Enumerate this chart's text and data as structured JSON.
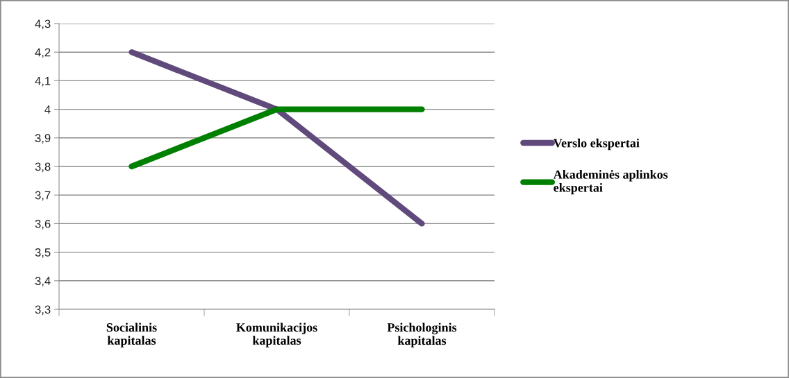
{
  "chart_data": {
    "type": "line",
    "categories": [
      "Socialinis kapitalas",
      "Komunikacijos kapitalas",
      "Psichologinis kapitalas"
    ],
    "series": [
      {
        "name": "Verslo ekspertai",
        "color": "#604a7b",
        "values": [
          4.2,
          4.0,
          3.6
        ]
      },
      {
        "name": "Akademinės aplinkos ekspertai",
        "color": "#008000",
        "values": [
          3.8,
          4.0,
          4.0
        ]
      }
    ],
    "ylim": [
      3.3,
      4.3
    ],
    "yticks": [
      {
        "value": 3.3,
        "label": "3,3"
      },
      {
        "value": 3.4,
        "label": "3,4"
      },
      {
        "value": 3.5,
        "label": "3,5"
      },
      {
        "value": 3.6,
        "label": "3,6"
      },
      {
        "value": 3.7,
        "label": "3,7"
      },
      {
        "value": 3.8,
        "label": "3,8"
      },
      {
        "value": 3.9,
        "label": "3,9"
      },
      4,
      {
        "value": 4.1,
        "label": "4,1"
      },
      {
        "value": 4.2,
        "label": "4,2"
      },
      {
        "value": 4.3,
        "label": "4,3"
      }
    ],
    "grid": "y",
    "legend": "right",
    "line_style": "solid"
  }
}
